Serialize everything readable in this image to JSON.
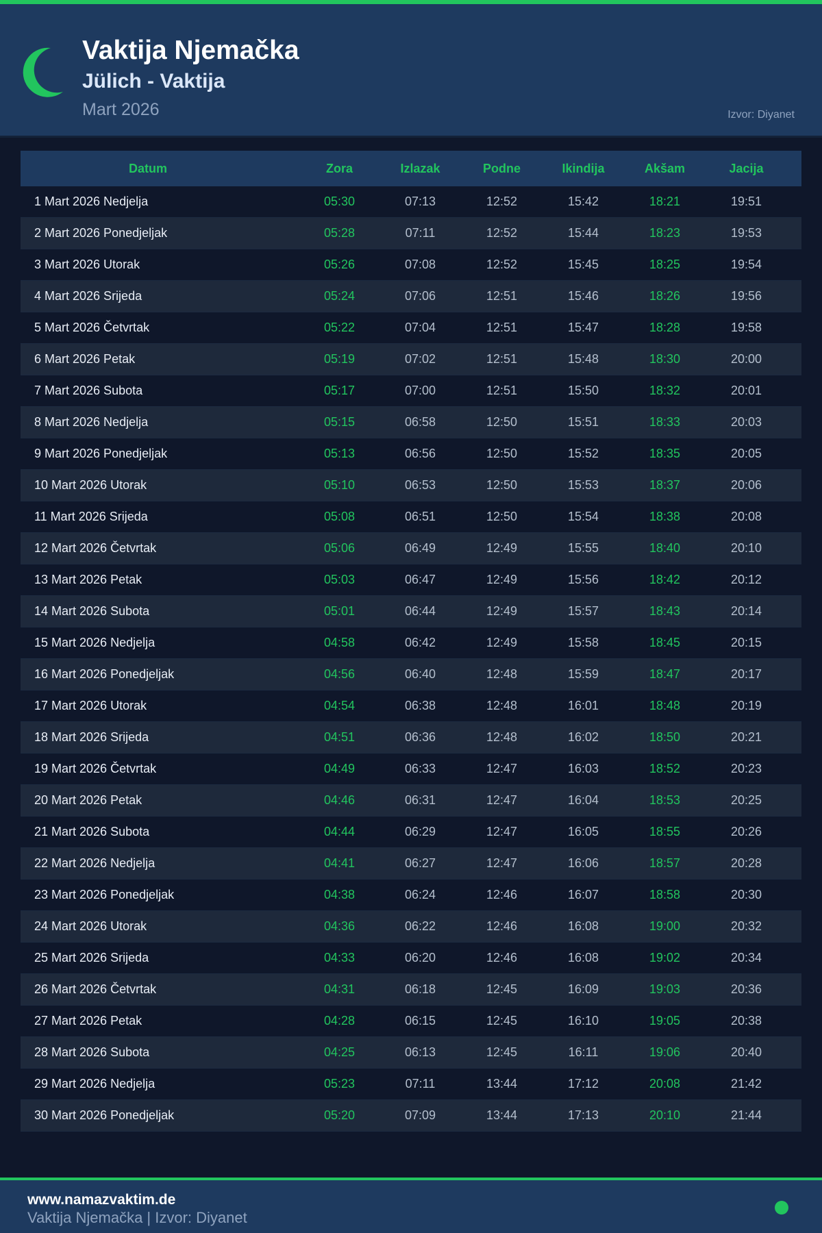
{
  "header": {
    "title": "Vaktija Njemačka",
    "subtitle": "Jülich - Vaktija",
    "month": "Mart 2026",
    "source": "Izvor: Diyanet",
    "icon": "crescent-moon-icon"
  },
  "colors": {
    "accent": "#22c55e",
    "header_bg": "#1e3a5f",
    "page_bg": "#0f172a",
    "row_alt": "#1e293b"
  },
  "table": {
    "columns": [
      "Datum",
      "Zora",
      "Izlazak",
      "Podne",
      "Ikindija",
      "Akšam",
      "Jacija"
    ],
    "rows": [
      [
        "1 Mart 2026 Nedjelja",
        "05:30",
        "07:13",
        "12:52",
        "15:42",
        "18:21",
        "19:51"
      ],
      [
        "2 Mart 2026 Ponedjeljak",
        "05:28",
        "07:11",
        "12:52",
        "15:44",
        "18:23",
        "19:53"
      ],
      [
        "3 Mart 2026 Utorak",
        "05:26",
        "07:08",
        "12:52",
        "15:45",
        "18:25",
        "19:54"
      ],
      [
        "4 Mart 2026 Srijeda",
        "05:24",
        "07:06",
        "12:51",
        "15:46",
        "18:26",
        "19:56"
      ],
      [
        "5 Mart 2026 Četvrtak",
        "05:22",
        "07:04",
        "12:51",
        "15:47",
        "18:28",
        "19:58"
      ],
      [
        "6 Mart 2026 Petak",
        "05:19",
        "07:02",
        "12:51",
        "15:48",
        "18:30",
        "20:00"
      ],
      [
        "7 Mart 2026 Subota",
        "05:17",
        "07:00",
        "12:51",
        "15:50",
        "18:32",
        "20:01"
      ],
      [
        "8 Mart 2026 Nedjelja",
        "05:15",
        "06:58",
        "12:50",
        "15:51",
        "18:33",
        "20:03"
      ],
      [
        "9 Mart 2026 Ponedjeljak",
        "05:13",
        "06:56",
        "12:50",
        "15:52",
        "18:35",
        "20:05"
      ],
      [
        "10 Mart 2026 Utorak",
        "05:10",
        "06:53",
        "12:50",
        "15:53",
        "18:37",
        "20:06"
      ],
      [
        "11 Mart 2026 Srijeda",
        "05:08",
        "06:51",
        "12:50",
        "15:54",
        "18:38",
        "20:08"
      ],
      [
        "12 Mart 2026 Četvrtak",
        "05:06",
        "06:49",
        "12:49",
        "15:55",
        "18:40",
        "20:10"
      ],
      [
        "13 Mart 2026 Petak",
        "05:03",
        "06:47",
        "12:49",
        "15:56",
        "18:42",
        "20:12"
      ],
      [
        "14 Mart 2026 Subota",
        "05:01",
        "06:44",
        "12:49",
        "15:57",
        "18:43",
        "20:14"
      ],
      [
        "15 Mart 2026 Nedjelja",
        "04:58",
        "06:42",
        "12:49",
        "15:58",
        "18:45",
        "20:15"
      ],
      [
        "16 Mart 2026 Ponedjeljak",
        "04:56",
        "06:40",
        "12:48",
        "15:59",
        "18:47",
        "20:17"
      ],
      [
        "17 Mart 2026 Utorak",
        "04:54",
        "06:38",
        "12:48",
        "16:01",
        "18:48",
        "20:19"
      ],
      [
        "18 Mart 2026 Srijeda",
        "04:51",
        "06:36",
        "12:48",
        "16:02",
        "18:50",
        "20:21"
      ],
      [
        "19 Mart 2026 Četvrtak",
        "04:49",
        "06:33",
        "12:47",
        "16:03",
        "18:52",
        "20:23"
      ],
      [
        "20 Mart 2026 Petak",
        "04:46",
        "06:31",
        "12:47",
        "16:04",
        "18:53",
        "20:25"
      ],
      [
        "21 Mart 2026 Subota",
        "04:44",
        "06:29",
        "12:47",
        "16:05",
        "18:55",
        "20:26"
      ],
      [
        "22 Mart 2026 Nedjelja",
        "04:41",
        "06:27",
        "12:47",
        "16:06",
        "18:57",
        "20:28"
      ],
      [
        "23 Mart 2026 Ponedjeljak",
        "04:38",
        "06:24",
        "12:46",
        "16:07",
        "18:58",
        "20:30"
      ],
      [
        "24 Mart 2026 Utorak",
        "04:36",
        "06:22",
        "12:46",
        "16:08",
        "19:00",
        "20:32"
      ],
      [
        "25 Mart 2026 Srijeda",
        "04:33",
        "06:20",
        "12:46",
        "16:08",
        "19:02",
        "20:34"
      ],
      [
        "26 Mart 2026 Četvrtak",
        "04:31",
        "06:18",
        "12:45",
        "16:09",
        "19:03",
        "20:36"
      ],
      [
        "27 Mart 2026 Petak",
        "04:28",
        "06:15",
        "12:45",
        "16:10",
        "19:05",
        "20:38"
      ],
      [
        "28 Mart 2026 Subota",
        "04:25",
        "06:13",
        "12:45",
        "16:11",
        "19:06",
        "20:40"
      ],
      [
        "29 Mart 2026 Nedjelja",
        "05:23",
        "07:11",
        "13:44",
        "17:12",
        "20:08",
        "21:42"
      ],
      [
        "30 Mart 2026 Ponedjeljak",
        "05:20",
        "07:09",
        "13:44",
        "17:13",
        "20:10",
        "21:44"
      ]
    ]
  },
  "footer": {
    "site": "www.namazvaktim.de",
    "text": "Vaktija Njemačka | Izvor: Diyanet"
  }
}
